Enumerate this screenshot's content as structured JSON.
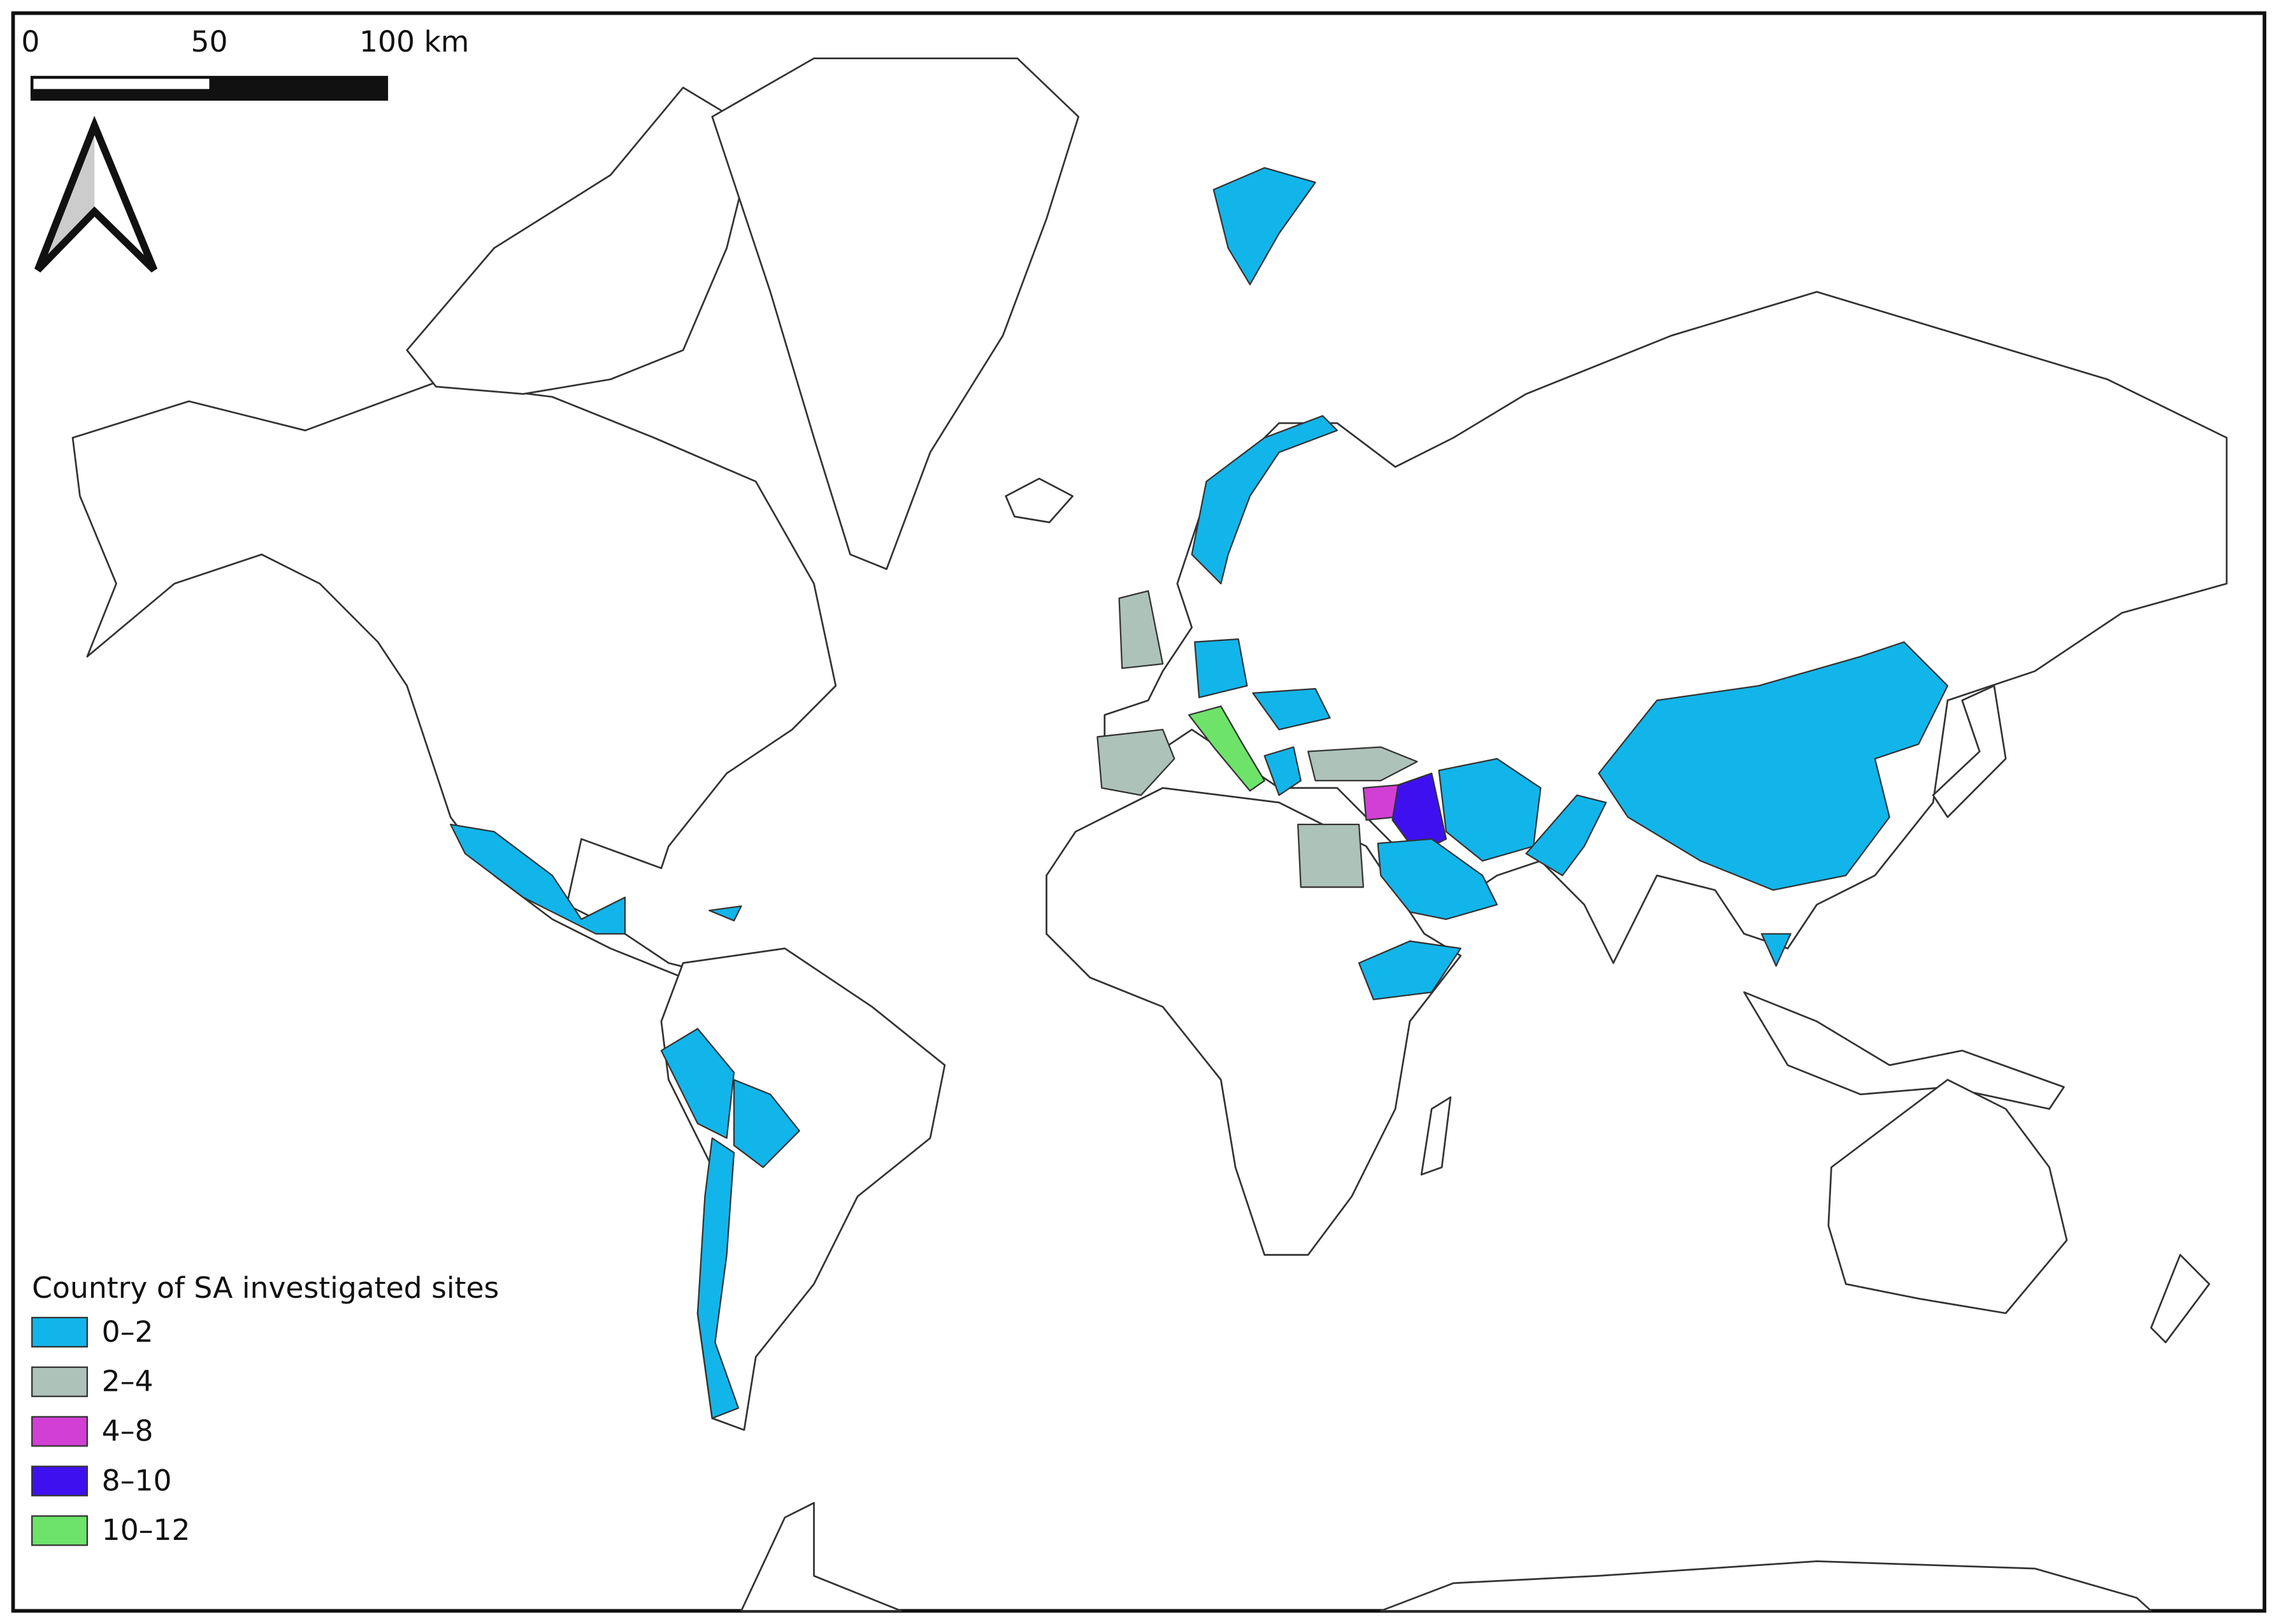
{
  "scale_bar": {
    "labels": [
      "0",
      "50",
      "100 km"
    ]
  },
  "legend": {
    "title": "Country of SA investigated sites",
    "items": [
      {
        "label": "0–2",
        "color": "#12b5ea"
      },
      {
        "label": "2–4",
        "color": "#adc2b9"
      },
      {
        "label": "4–8",
        "color": "#d23fd4"
      },
      {
        "label": "8–10",
        "color": "#3f10ef"
      },
      {
        "label": "10–12",
        "color": "#6ee36a"
      }
    ]
  }
}
